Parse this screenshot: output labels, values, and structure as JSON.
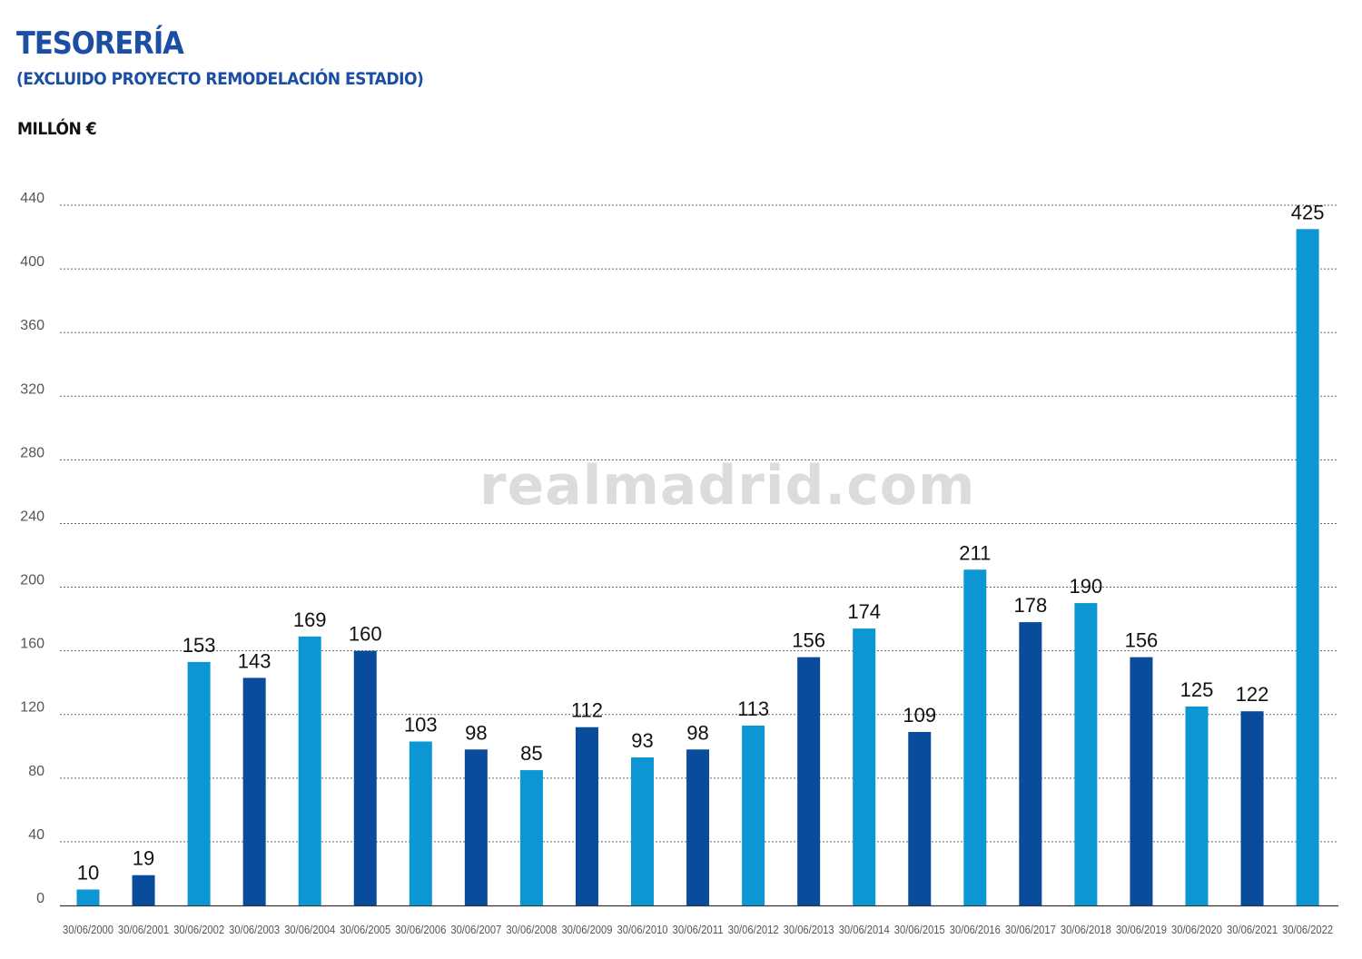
{
  "header": {
    "title": "TESORERÍA",
    "subtitle": "(EXCLUIDO PROYECTO REMODELACIÓN ESTADIO)",
    "unit": "MILLÓN €"
  },
  "watermark": "realmadrid.com",
  "colors": {
    "light": "#0d96d4",
    "dark": "#0a4c9c",
    "title": "#1b4fa3"
  },
  "chart_data": {
    "type": "bar",
    "title": "TESORERÍA",
    "subtitle": "(EXCLUIDO PROYECTO REMODELACIÓN ESTADIO)",
    "ylabel": "MILLÓN €",
    "xlabel": "",
    "ylim": [
      0,
      440
    ],
    "yticks": [
      0,
      40,
      80,
      120,
      160,
      200,
      240,
      280,
      320,
      360,
      400,
      440
    ],
    "grid": true,
    "categories": [
      "30/06/2000",
      "30/06/2001",
      "30/06/2002",
      "30/06/2003",
      "30/06/2004",
      "30/06/2005",
      "30/06/2006",
      "30/06/2007",
      "30/06/2008",
      "30/06/2009",
      "30/06/2010",
      "30/06/2011",
      "30/06/2012",
      "30/06/2013",
      "30/06/2014",
      "30/06/2015",
      "30/06/2016",
      "30/06/2017",
      "30/06/2018",
      "30/06/2019",
      "30/06/2020",
      "30/06/2021",
      "30/06/2022"
    ],
    "values": [
      10,
      19,
      153,
      143,
      169,
      160,
      103,
      98,
      85,
      112,
      93,
      98,
      113,
      156,
      174,
      109,
      211,
      178,
      190,
      156,
      125,
      122,
      425
    ],
    "bar_colors": [
      "light",
      "dark",
      "light",
      "dark",
      "light",
      "dark",
      "light",
      "dark",
      "light",
      "dark",
      "light",
      "dark",
      "light",
      "dark",
      "light",
      "dark",
      "light",
      "dark",
      "light",
      "dark",
      "light",
      "dark",
      "light"
    ]
  }
}
